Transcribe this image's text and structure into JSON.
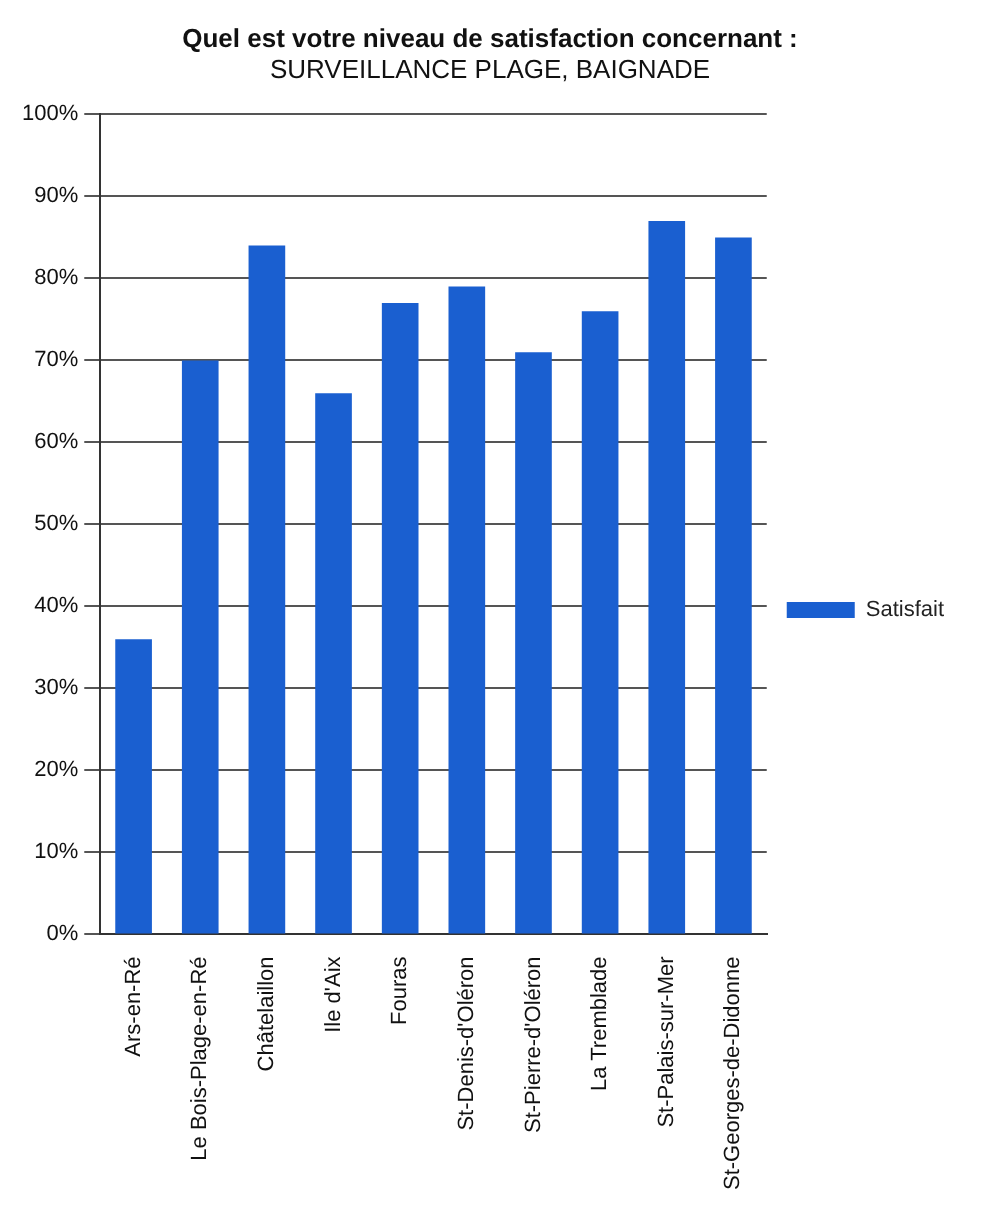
{
  "chart_data": {
    "type": "bar",
    "title": "Quel est votre niveau de satisfaction concernant :",
    "subtitle": "SURVEILLANCE PLAGE, BAIGNADE",
    "categories": [
      "Ars-en-Ré",
      "Le Bois-Plage-en-Ré",
      "Châtelaillon",
      "Ile d'Aix",
      "Fouras",
      "St-Denis-d'Oléron",
      "St-Pierre-d'Oléron",
      "La Tremblade",
      "St-Palais-sur-Mer",
      "St-Georges-de-Didonne"
    ],
    "series": [
      {
        "name": "Satisfait",
        "color": "#1a5fd0",
        "values": [
          36,
          70,
          84,
          66,
          77,
          79,
          71,
          76,
          87,
          85
        ]
      }
    ],
    "ylim": [
      0,
      100
    ],
    "yticks": [
      {
        "value": 0,
        "label": "0%"
      },
      {
        "value": 10,
        "label": "10%"
      },
      {
        "value": 20,
        "label": "20%"
      },
      {
        "value": 30,
        "label": "30%"
      },
      {
        "value": 40,
        "label": "40%"
      },
      {
        "value": 50,
        "label": "50%"
      },
      {
        "value": 60,
        "label": "60%"
      },
      {
        "value": 70,
        "label": "70%"
      },
      {
        "value": 80,
        "label": "80%"
      },
      {
        "value": 90,
        "label": "90%"
      },
      {
        "value": 100,
        "label": "100%"
      }
    ],
    "grid": "y",
    "legend": "right"
  }
}
